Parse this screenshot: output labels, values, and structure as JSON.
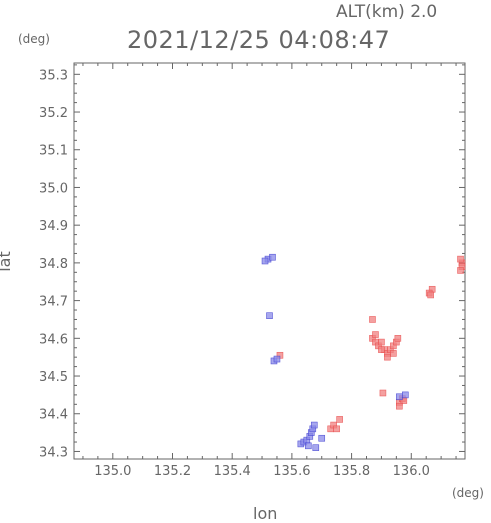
{
  "header": {
    "alt_label": "ALT(km) 2.0",
    "timestamp": "2021/12/25 04:08:47"
  },
  "chart_data": {
    "type": "scatter",
    "title": "2021/12/25 04:08:47",
    "subtitle": "ALT(km) 2.0",
    "xlabel": "lon",
    "ylabel": "lat",
    "x_unit": "(deg)",
    "y_unit": "(deg)",
    "xlim": [
      134.87,
      136.18
    ],
    "ylim": [
      34.28,
      35.33
    ],
    "x_ticks": [
      "135.0",
      "135.2",
      "135.4",
      "135.6",
      "135.8",
      "136.0"
    ],
    "y_ticks": [
      "34.3",
      "34.4",
      "34.5",
      "34.6",
      "34.7",
      "34.8",
      "34.9",
      "35.0",
      "35.1",
      "35.2",
      "35.3"
    ],
    "grid": false,
    "colors": {
      "positive": "#f08080",
      "positive_strong": "#e84848",
      "negative": "#8a8ae8",
      "negative_strong": "#3a3ad0",
      "axis": "#666666"
    },
    "series": [
      {
        "polarity": "positive",
        "points": [
          [
            136.17,
            34.8
          ],
          [
            136.17,
            34.79
          ],
          [
            136.165,
            34.81
          ],
          [
            136.165,
            34.78
          ],
          [
            136.07,
            34.73
          ],
          [
            136.06,
            34.72
          ],
          [
            136.065,
            34.715
          ],
          [
            135.87,
            34.6
          ],
          [
            135.88,
            34.59
          ],
          [
            135.89,
            34.58
          ],
          [
            135.9,
            34.59
          ],
          [
            135.91,
            34.57
          ],
          [
            135.92,
            34.56
          ],
          [
            135.93,
            34.57
          ],
          [
            135.94,
            34.58
          ],
          [
            135.95,
            34.59
          ],
          [
            135.955,
            34.6
          ],
          [
            135.94,
            34.56
          ],
          [
            135.92,
            34.55
          ],
          [
            135.9,
            34.57
          ],
          [
            135.88,
            34.61
          ],
          [
            135.87,
            34.65
          ],
          [
            135.96,
            34.43
          ],
          [
            135.97,
            34.44
          ],
          [
            135.975,
            34.435
          ],
          [
            135.96,
            34.42
          ],
          [
            135.905,
            34.455
          ],
          [
            135.56,
            34.555
          ],
          [
            135.73,
            34.36
          ],
          [
            135.74,
            34.37
          ],
          [
            135.75,
            34.36
          ],
          [
            135.76,
            34.385
          ]
        ]
      },
      {
        "polarity": "negative",
        "points": [
          [
            135.63,
            34.32
          ],
          [
            135.64,
            34.325
          ],
          [
            135.65,
            34.33
          ],
          [
            135.66,
            34.34
          ],
          [
            135.665,
            34.35
          ],
          [
            135.67,
            34.36
          ],
          [
            135.675,
            34.37
          ],
          [
            135.655,
            34.315
          ],
          [
            135.68,
            34.31
          ],
          [
            135.7,
            34.335
          ],
          [
            135.52,
            34.81
          ],
          [
            135.51,
            34.805
          ],
          [
            135.535,
            34.815
          ],
          [
            135.525,
            34.66
          ],
          [
            135.54,
            34.54
          ],
          [
            135.55,
            34.545
          ],
          [
            135.96,
            34.445
          ],
          [
            135.98,
            34.45
          ]
        ]
      }
    ]
  }
}
